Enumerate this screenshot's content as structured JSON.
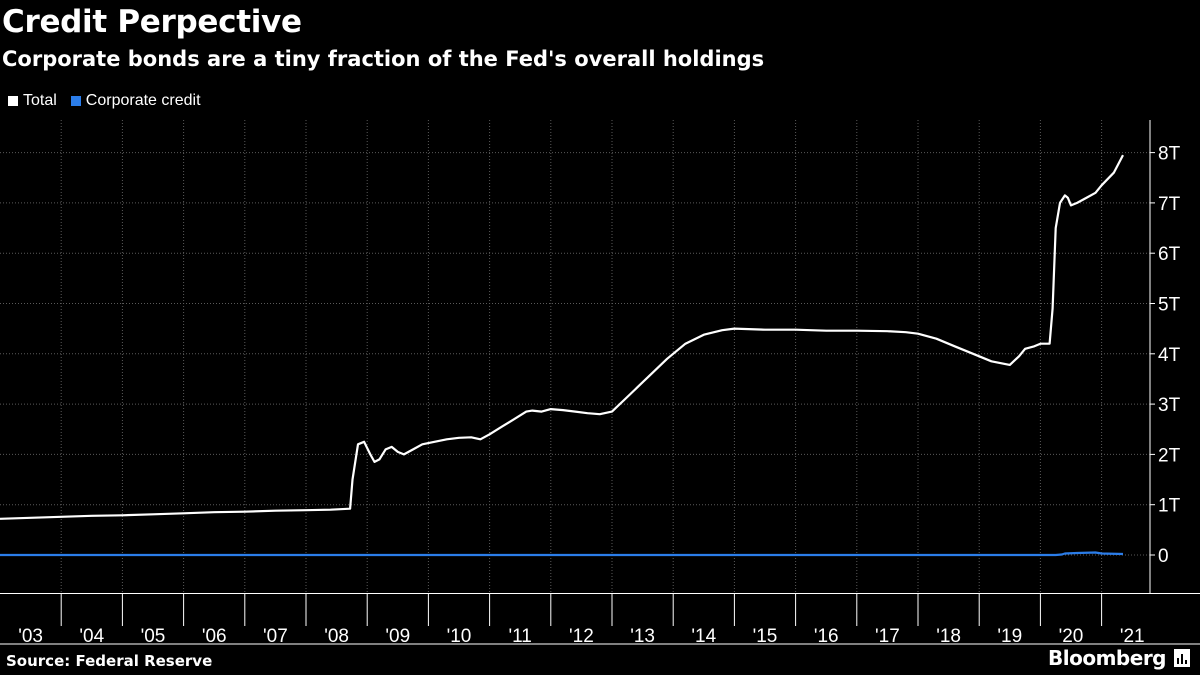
{
  "title": "Credit Perpective",
  "subtitle": "Corporate bonds are a tiny fraction of the Fed's overall holdings",
  "legend": [
    {
      "label": "Total",
      "color": "#ffffff"
    },
    {
      "label": "Corporate credit",
      "color": "#2b7de9"
    }
  ],
  "footer": {
    "source": "Source: Federal Reserve",
    "brand": "Bloomberg"
  },
  "chart_data": {
    "type": "line",
    "title": "Credit Perpective",
    "subtitle": "Corporate bonds are a tiny fraction of the Fed's overall holdings",
    "xlabel": "",
    "ylabel": "",
    "x_range": [
      2003.0,
      2021.4
    ],
    "ylim": [
      -0.8,
      8.8
    ],
    "y_ticks": [
      0,
      1,
      2,
      3,
      4,
      5,
      6,
      7,
      8
    ],
    "y_tick_labels": [
      "0",
      "1T",
      "2T",
      "3T",
      "4T",
      "5T",
      "6T",
      "7T",
      "8T"
    ],
    "x_tick_labels": [
      "'03",
      "'04",
      "'05",
      "'06",
      "'07",
      "'08",
      "'09",
      "'10",
      "'11",
      "'12",
      "'13",
      "'14",
      "'15",
      "'16",
      "'17",
      "'18",
      "'19",
      "'20",
      "'21"
    ],
    "grid": true,
    "legend_position": "top-left",
    "series": [
      {
        "name": "Total",
        "color": "#ffffff",
        "x": [
          2003.0,
          2003.5,
          2004.0,
          2004.5,
          2005.0,
          2005.5,
          2006.0,
          2006.5,
          2007.0,
          2007.5,
          2008.0,
          2008.4,
          2008.72,
          2008.76,
          2008.85,
          2008.95,
          2009.05,
          2009.12,
          2009.2,
          2009.3,
          2009.4,
          2009.5,
          2009.6,
          2009.75,
          2009.9,
          2010.1,
          2010.3,
          2010.5,
          2010.7,
          2010.85,
          2011.0,
          2011.2,
          2011.4,
          2011.6,
          2011.7,
          2011.85,
          2012.0,
          2012.2,
          2012.4,
          2012.6,
          2012.8,
          2013.0,
          2013.3,
          2013.6,
          2013.9,
          2014.2,
          2014.5,
          2014.8,
          2015.0,
          2015.5,
          2016.0,
          2016.5,
          2017.0,
          2017.5,
          2017.8,
          2018.0,
          2018.3,
          2018.6,
          2018.9,
          2019.2,
          2019.5,
          2019.65,
          2019.75,
          2019.9,
          2020.0,
          2020.15,
          2020.2,
          2020.25,
          2020.32,
          2020.4,
          2020.45,
          2020.5,
          2020.6,
          2020.75,
          2020.9,
          2021.0,
          2021.2,
          2021.35
        ],
        "values": [
          0.72,
          0.74,
          0.76,
          0.78,
          0.79,
          0.81,
          0.83,
          0.85,
          0.86,
          0.88,
          0.89,
          0.9,
          0.92,
          1.5,
          2.2,
          2.25,
          2.0,
          1.85,
          1.9,
          2.1,
          2.15,
          2.05,
          2.0,
          2.1,
          2.2,
          2.25,
          2.3,
          2.33,
          2.34,
          2.3,
          2.4,
          2.55,
          2.7,
          2.85,
          2.87,
          2.85,
          2.9,
          2.88,
          2.85,
          2.82,
          2.8,
          2.85,
          3.2,
          3.55,
          3.9,
          4.2,
          4.38,
          4.47,
          4.5,
          4.48,
          4.48,
          4.46,
          4.46,
          4.45,
          4.43,
          4.4,
          4.3,
          4.15,
          4.0,
          3.85,
          3.78,
          3.95,
          4.1,
          4.15,
          4.2,
          4.2,
          4.9,
          6.5,
          7.0,
          7.15,
          7.1,
          6.95,
          7.0,
          7.1,
          7.2,
          7.35,
          7.6,
          7.95
        ]
      },
      {
        "name": "Corporate credit",
        "color": "#2b7de9",
        "x": [
          2003.0,
          2020.25,
          2020.35,
          2020.4,
          2020.6,
          2020.9,
          2021.0,
          2021.35
        ],
        "values": [
          0,
          0,
          0.01,
          0.03,
          0.04,
          0.05,
          0.03,
          0.02
        ]
      }
    ]
  }
}
